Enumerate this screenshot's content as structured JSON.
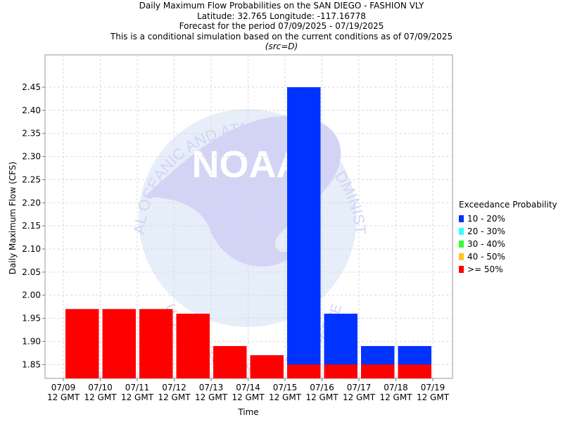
{
  "title_lines": [
    "Daily Maximum Flow Probabilities on the SAN DIEGO - FASHION VLY",
    "Latitude: 32.765 Longitude: -117.16778",
    "Forecast for the period 07/09/2025 - 07/19/2025",
    "This is a conditional simulation based on the current conditions as of 07/09/2025"
  ],
  "source_note": "(src=D)",
  "watermark": {
    "logo_text": "NOAA",
    "ring_text": "NATIONAL OCEANIC AND ATMOSPHERIC ADMINISTRATION",
    "bottom_text": "U.S. DEPARTMENT OF COMMERCE"
  },
  "legend": {
    "title": "Exceedance Probability",
    "items": [
      {
        "label": "10 - 20%",
        "color": "#0033ff"
      },
      {
        "label": "20 - 30%",
        "color": "#33ffff"
      },
      {
        "label": "30 - 40%",
        "color": "#33ff33"
      },
      {
        "label": "40 - 50%",
        "color": "#ffc61e"
      },
      {
        "label": ">= 50%",
        "color": "#ff0000"
      }
    ]
  },
  "chart_data": {
    "type": "bar",
    "xlabel": "Time",
    "ylabel": "Daily Maximum Flow (CFS)",
    "ylim": [
      1.82,
      2.52
    ],
    "yticks": [
      1.85,
      1.9,
      1.95,
      2.0,
      2.05,
      2.1,
      2.15,
      2.2,
      2.25,
      2.3,
      2.35,
      2.4,
      2.45
    ],
    "x_ticks": [
      {
        "date": "07/09",
        "time": "12 GMT"
      },
      {
        "date": "07/10",
        "time": "12 GMT"
      },
      {
        "date": "07/11",
        "time": "12 GMT"
      },
      {
        "date": "07/12",
        "time": "12 GMT"
      },
      {
        "date": "07/13",
        "time": "12 GMT"
      },
      {
        "date": "07/14",
        "time": "12 GMT"
      },
      {
        "date": "07/15",
        "time": "12 GMT"
      },
      {
        "date": "07/16",
        "time": "12 GMT"
      },
      {
        "date": "07/17",
        "time": "12 GMT"
      },
      {
        "date": "07/18",
        "time": "12 GMT"
      },
      {
        "date": "07/19",
        "time": "12 GMT"
      }
    ],
    "grid": true,
    "legend_position": "right",
    "series": [
      {
        "name": "10 - 20%",
        "color": "#0033ff",
        "values": [
          1.97,
          1.97,
          1.97,
          1.96,
          1.89,
          1.87,
          2.45,
          1.96,
          1.89,
          1.89
        ]
      },
      {
        "name": ">= 50%",
        "color": "#ff0000",
        "values": [
          1.97,
          1.97,
          1.97,
          1.96,
          1.89,
          1.87,
          1.85,
          1.85,
          1.85,
          1.85
        ]
      }
    ]
  }
}
